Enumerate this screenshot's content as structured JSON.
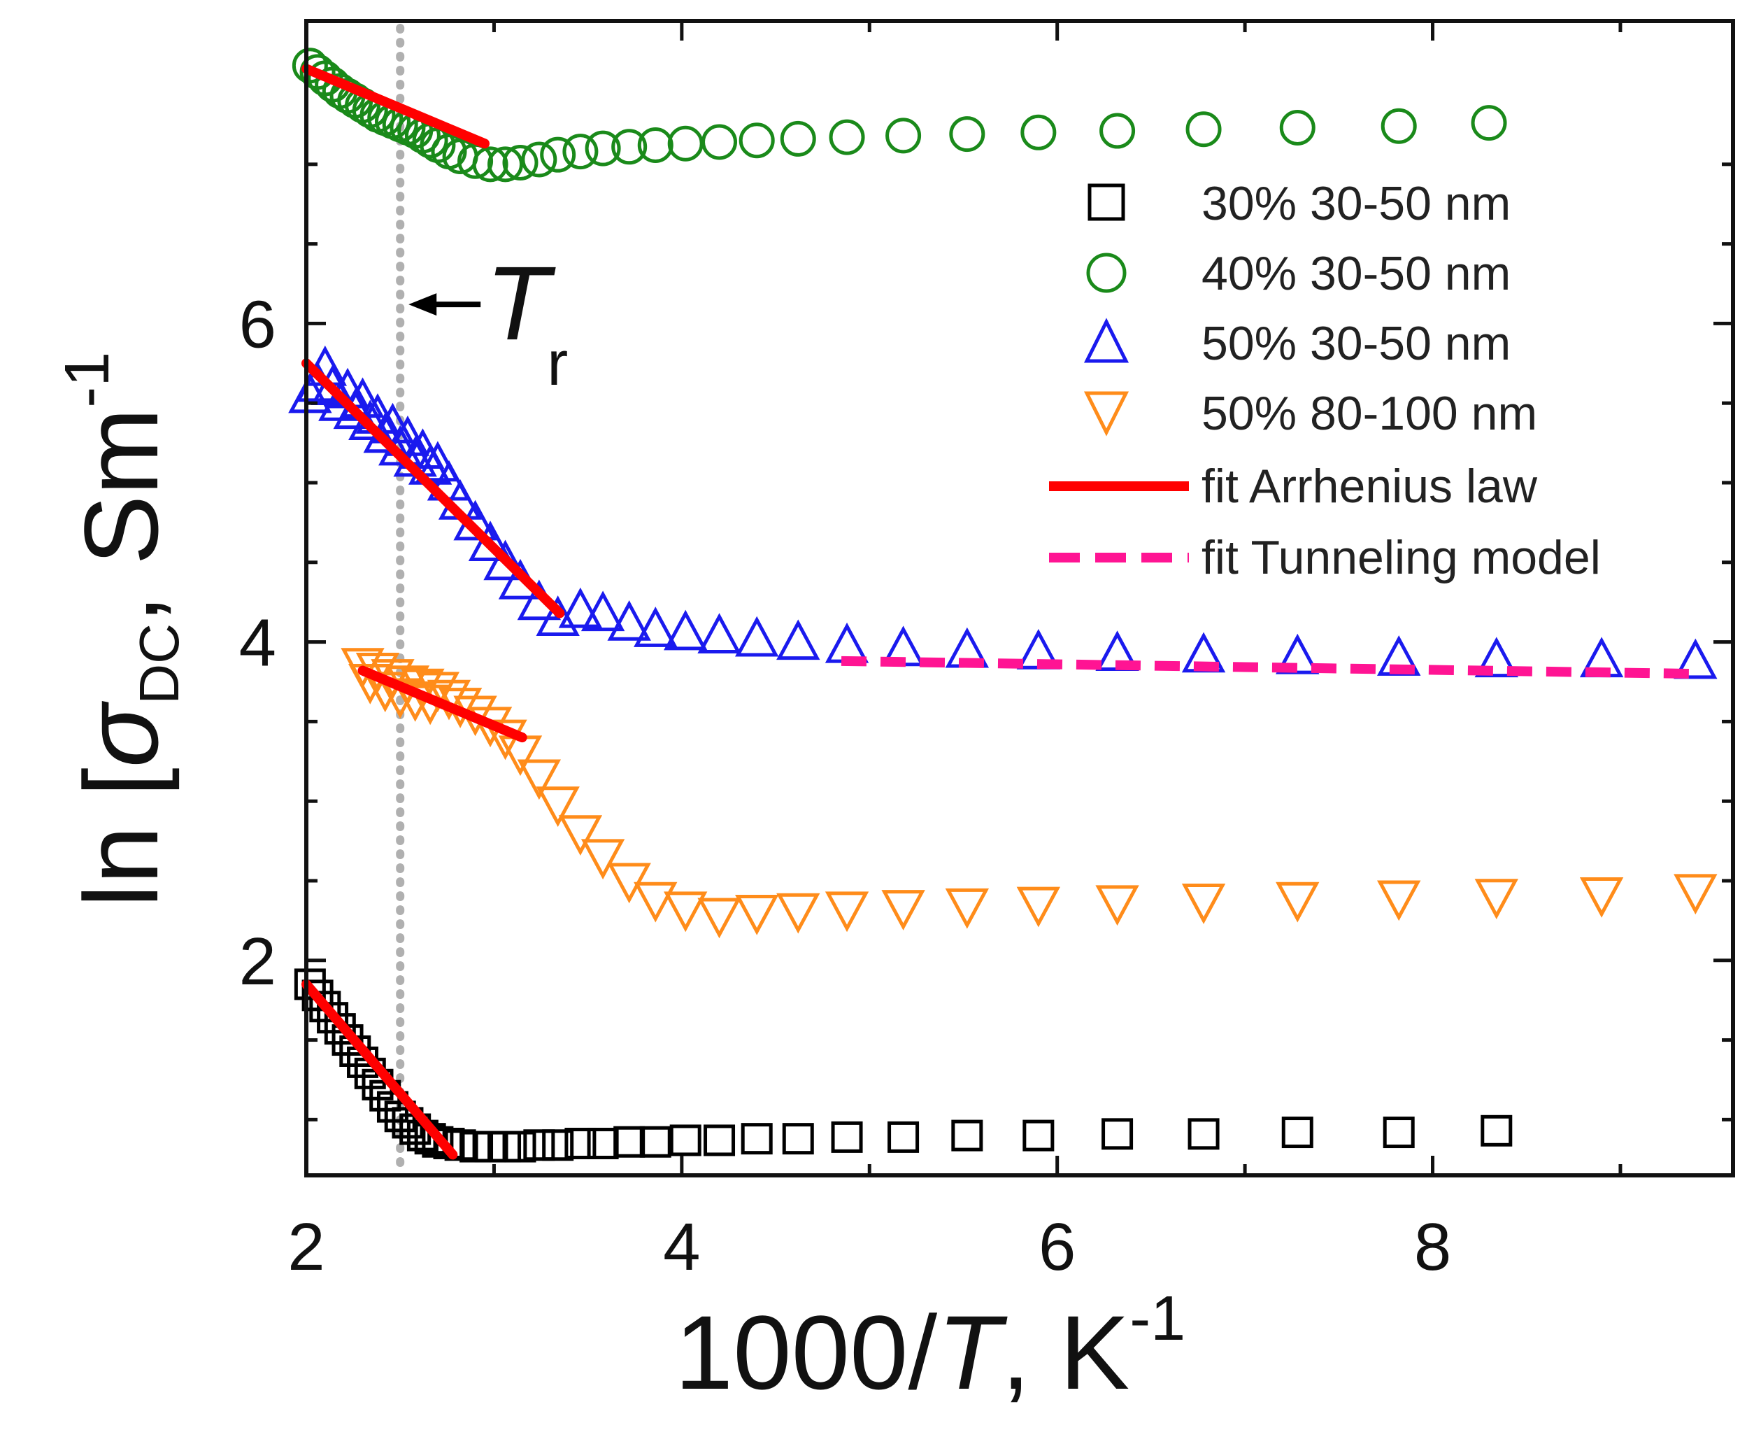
{
  "chart_data": {
    "type": "scatter",
    "xlabel": {
      "main": "1000/",
      "italic": "T",
      "rest": ", K",
      "sup": "-1"
    },
    "ylabel": {
      "main": "ln [",
      "sigma": "σ",
      "sub": "DC",
      "rest": ", Sm",
      "sup": "-1"
    },
    "xlim": [
      2,
      9.6
    ],
    "ylim": [
      0.65,
      7.9
    ],
    "x_ticks": [
      2,
      4,
      6,
      8
    ],
    "x_tick_labels": [
      "2",
      "4",
      "6",
      "8"
    ],
    "y_ticks": [
      2,
      4,
      6
    ],
    "y_tick_labels": [
      "2",
      "4",
      "6"
    ],
    "grid": false,
    "legend_position": "right",
    "annotation": {
      "label": "T",
      "sub": "r",
      "x": 2.5,
      "y": 6.12
    },
    "reference_line_x": 2.5,
    "series": [
      {
        "name": "30% 30-50 nm",
        "marker": "square",
        "color": "#000000",
        "x": [
          2.02,
          2.06,
          2.1,
          2.14,
          2.18,
          2.22,
          2.26,
          2.3,
          2.34,
          2.38,
          2.42,
          2.46,
          2.5,
          2.54,
          2.58,
          2.62,
          2.66,
          2.7,
          2.76,
          2.82,
          2.9,
          2.98,
          3.06,
          3.14,
          3.24,
          3.34,
          3.46,
          3.58,
          3.72,
          3.86,
          4.02,
          4.2,
          4.4,
          4.62,
          4.88,
          5.18,
          5.52,
          5.9,
          6.32,
          6.78,
          7.28,
          7.82,
          8.34
        ],
        "y": [
          1.85,
          1.78,
          1.71,
          1.64,
          1.57,
          1.5,
          1.43,
          1.36,
          1.29,
          1.22,
          1.15,
          1.08,
          1.02,
          0.98,
          0.94,
          0.9,
          0.88,
          0.86,
          0.85,
          0.84,
          0.83,
          0.83,
          0.83,
          0.83,
          0.84,
          0.84,
          0.85,
          0.85,
          0.86,
          0.86,
          0.87,
          0.87,
          0.88,
          0.88,
          0.89,
          0.89,
          0.9,
          0.9,
          0.91,
          0.91,
          0.92,
          0.92,
          0.93
        ]
      },
      {
        "name": "40% 30-50 nm",
        "marker": "circle",
        "color": "#1a8a1a",
        "x": [
          2.02,
          2.06,
          2.1,
          2.14,
          2.18,
          2.22,
          2.26,
          2.3,
          2.34,
          2.38,
          2.42,
          2.46,
          2.5,
          2.54,
          2.58,
          2.62,
          2.66,
          2.7,
          2.76,
          2.82,
          2.9,
          2.98,
          3.06,
          3.14,
          3.24,
          3.34,
          3.46,
          3.58,
          3.72,
          3.86,
          4.02,
          4.2,
          4.4,
          4.62,
          4.88,
          5.18,
          5.52,
          5.9,
          6.32,
          6.78,
          7.28,
          7.82,
          8.3
        ],
        "y": [
          7.62,
          7.58,
          7.54,
          7.5,
          7.46,
          7.43,
          7.4,
          7.37,
          7.34,
          7.31,
          7.29,
          7.27,
          7.25,
          7.23,
          7.21,
          7.18,
          7.15,
          7.12,
          7.08,
          7.05,
          7.02,
          7.0,
          7.0,
          7.01,
          7.03,
          7.06,
          7.08,
          7.1,
          7.11,
          7.12,
          7.13,
          7.14,
          7.15,
          7.16,
          7.17,
          7.18,
          7.19,
          7.2,
          7.21,
          7.22,
          7.23,
          7.24,
          7.26
        ]
      },
      {
        "name": "50% 30-50 nm",
        "marker": "triangle-up",
        "color": "#1a1aee",
        "x": [
          2.02,
          2.06,
          2.1,
          2.14,
          2.18,
          2.22,
          2.26,
          2.3,
          2.34,
          2.38,
          2.42,
          2.46,
          2.5,
          2.54,
          2.58,
          2.62,
          2.66,
          2.7,
          2.76,
          2.82,
          2.9,
          2.98,
          3.06,
          3.14,
          3.24,
          3.34,
          3.46,
          3.58,
          3.72,
          3.86,
          4.02,
          4.2,
          4.4,
          4.62,
          4.88,
          5.18,
          5.52,
          5.9,
          6.32,
          6.78,
          7.28,
          7.82,
          8.34,
          8.9,
          9.4
        ],
        "y": [
          5.55,
          5.62,
          5.72,
          5.6,
          5.5,
          5.58,
          5.45,
          5.52,
          5.38,
          5.42,
          5.3,
          5.36,
          5.22,
          5.28,
          5.15,
          5.2,
          5.1,
          5.12,
          5.0,
          4.88,
          4.75,
          4.62,
          4.5,
          4.38,
          4.25,
          4.15,
          4.2,
          4.18,
          4.12,
          4.08,
          4.06,
          4.04,
          4.02,
          4.0,
          3.98,
          3.96,
          3.95,
          3.94,
          3.93,
          3.92,
          3.91,
          3.9,
          3.89,
          3.89,
          3.88
        ]
      },
      {
        "name": "50% 80-100 nm",
        "marker": "triangle-down",
        "color": "#ff8c1a",
        "x": [
          2.3,
          2.34,
          2.38,
          2.42,
          2.46,
          2.5,
          2.54,
          2.58,
          2.62,
          2.66,
          2.7,
          2.76,
          2.82,
          2.9,
          2.98,
          3.06,
          3.14,
          3.24,
          3.34,
          3.46,
          3.58,
          3.72,
          3.86,
          4.02,
          4.2,
          4.4,
          4.62,
          4.88,
          5.18,
          5.52,
          5.9,
          6.32,
          6.78,
          7.28,
          7.82,
          8.34,
          8.9,
          9.4
        ],
        "y": [
          3.85,
          3.75,
          3.82,
          3.7,
          3.78,
          3.66,
          3.74,
          3.64,
          3.72,
          3.62,
          3.7,
          3.65,
          3.6,
          3.55,
          3.48,
          3.4,
          3.3,
          3.15,
          2.98,
          2.8,
          2.65,
          2.5,
          2.38,
          2.32,
          2.28,
          2.3,
          2.31,
          2.32,
          2.33,
          2.34,
          2.35,
          2.36,
          2.37,
          2.38,
          2.39,
          2.4,
          2.41,
          2.43
        ]
      }
    ],
    "fits": [
      {
        "name": "fit Arrhenius law",
        "style": "solid",
        "color": "#ff0000",
        "segments": [
          {
            "x": [
              2.0,
              2.95
            ],
            "y": [
              7.6,
              7.13
            ]
          },
          {
            "x": [
              2.0,
              3.35
            ],
            "y": [
              5.75,
              4.18
            ]
          },
          {
            "x": [
              2.3,
              3.15
            ],
            "y": [
              3.82,
              3.4
            ]
          },
          {
            "x": [
              2.0,
              2.78
            ],
            "y": [
              1.85,
              0.78
            ]
          }
        ]
      },
      {
        "name": "fit Tunneling model",
        "style": "dashed",
        "color": "#ff1493",
        "segments": [
          {
            "x": [
              4.85,
              9.4
            ],
            "y": [
              3.88,
              3.8
            ]
          }
        ]
      }
    ],
    "legend": [
      {
        "label": "30% 30-50 nm"
      },
      {
        "label": "40% 30-50 nm"
      },
      {
        "label": "50% 30-50 nm"
      },
      {
        "label": "50% 80-100 nm"
      },
      {
        "label": "fit Arrhenius law"
      },
      {
        "label": "fit Tunneling model"
      }
    ]
  }
}
